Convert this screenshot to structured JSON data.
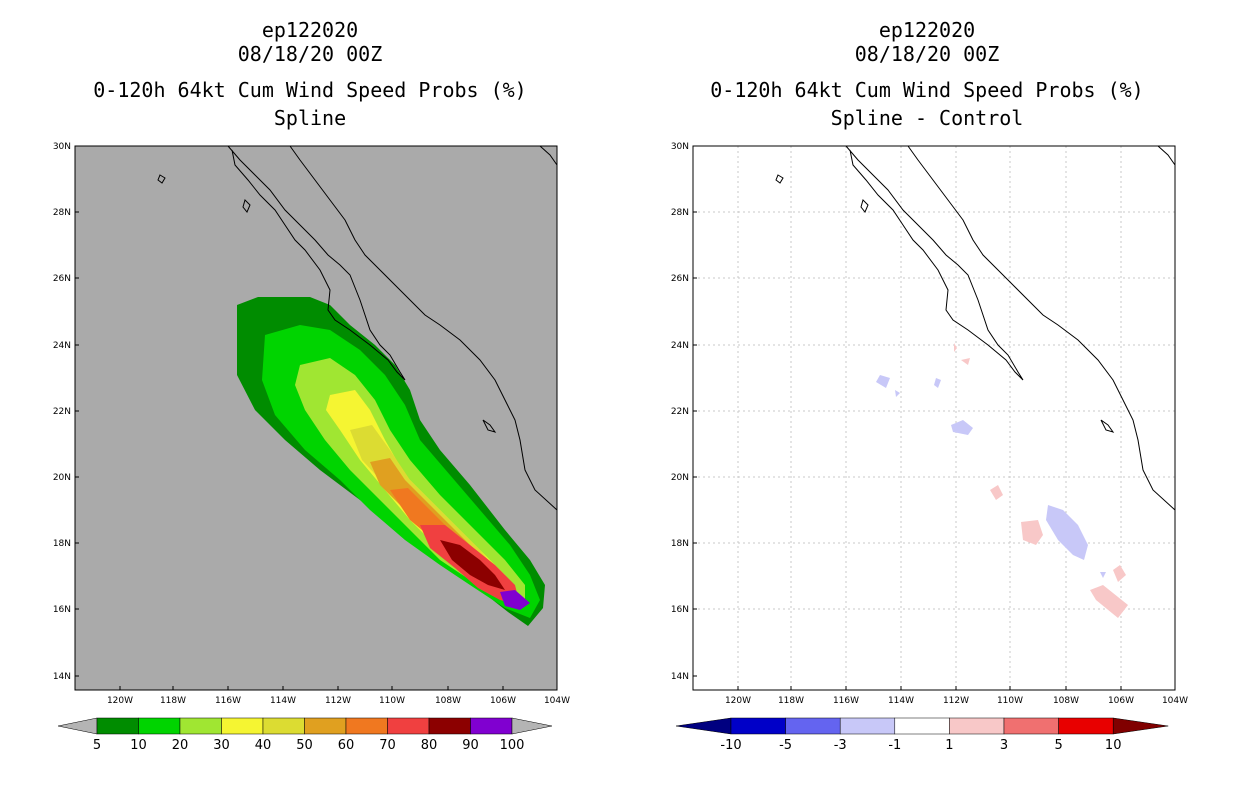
{
  "left": {
    "storm_id": "ep122020",
    "datetime": "08/18/20 00Z",
    "product": "0-120h 64kt Cum Wind Speed Probs (%)",
    "subtitle": "Spline",
    "colorbar": {
      "labels": [
        "5",
        "10",
        "20",
        "30",
        "40",
        "50",
        "60",
        "70",
        "80",
        "90",
        "100"
      ],
      "colors": [
        "#008c00",
        "#00d400",
        "#a0e632",
        "#f5f532",
        "#dcdc32",
        "#e0a020",
        "#f07820",
        "#f04040",
        "#8c0000",
        "#8000d0"
      ]
    }
  },
  "right": {
    "storm_id": "ep122020",
    "datetime": "08/18/20 00Z",
    "product": "0-120h 64kt Cum Wind Speed Probs (%)",
    "subtitle": "Spline - Control",
    "colorbar": {
      "labels": [
        "-10",
        "-5",
        "-3",
        "-1",
        "1",
        "3",
        "5",
        "10"
      ],
      "colors": [
        "#0000c8",
        "#6464f0",
        "#c8c8f8",
        "#ffffff",
        "#f8c8c8",
        "#f07070",
        "#e80000"
      ],
      "end_colors": [
        "#000080",
        "#800000"
      ]
    }
  },
  "axes": {
    "lat_labels": [
      "30N",
      "28N",
      "26N",
      "24N",
      "22N",
      "20N",
      "18N",
      "16N",
      "14N"
    ],
    "lon_labels": [
      "120W",
      "118W",
      "116W",
      "114W",
      "112W",
      "110W",
      "108W",
      "106W",
      "104W"
    ]
  }
}
